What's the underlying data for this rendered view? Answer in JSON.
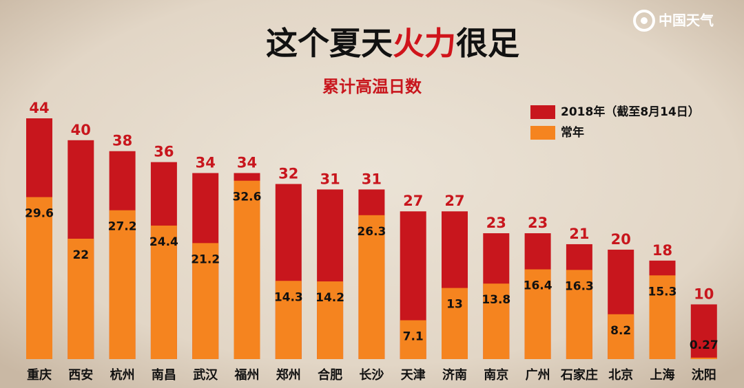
{
  "chart_data": {
    "type": "bar",
    "barmode": "overlay",
    "title": [
      "这个夏天",
      "火力",
      "很足"
    ],
    "title_colors": [
      "#111111",
      "#d0141b",
      "#111111"
    ],
    "subtitle": "累计高温日数",
    "categories": [
      "重庆",
      "西安",
      "杭州",
      "南昌",
      "武汉",
      "福州",
      "郑州",
      "合肥",
      "长沙",
      "天津",
      "济南",
      "南京",
      "广州",
      "石家庄",
      "北京",
      "上海",
      "沈阳"
    ],
    "series": [
      {
        "name": "2018年（截至8月14日）",
        "color": "#c8161d",
        "values": [
          44,
          40,
          38,
          36,
          34,
          34,
          32,
          31,
          31,
          27,
          27,
          23,
          23,
          21,
          20,
          18,
          10
        ]
      },
      {
        "name": "常年",
        "color": "#f5841f",
        "values": [
          29.6,
          22,
          27.2,
          24.4,
          21.2,
          32.6,
          14.3,
          14.2,
          26.3,
          7.1,
          13,
          13.8,
          16.4,
          16.3,
          8.2,
          15.3,
          0.27
        ]
      }
    ],
    "legend": "upper right"
  },
  "logo": "中国天气"
}
